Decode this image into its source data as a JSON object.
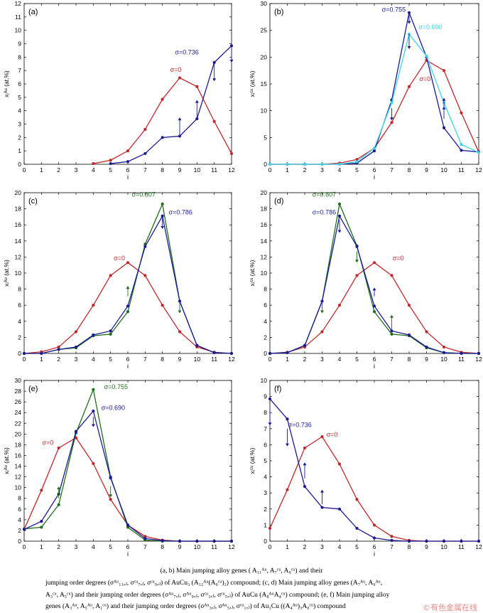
{
  "colors": {
    "red": "#c0282b",
    "navy": "#1a1a96",
    "green": "#1e6e1e",
    "cyan": "#3ed5e6"
  },
  "caption": {
    "line1": "(a, b) Main jumping alloy genes ( A₁₁ᴬᵘ, A₇ᶜᵘ, A₉ᶜᵘ) and their",
    "line2": "jumping order degrees (σᴬᵘ₁₁,ⱼ, σᶜᵘ₇,ⱼ, σᶜᵘ₉,ⱼ) of AuCu₃ (A₁₂ᴬᵘ(A₀ᶜᵘ)₃) compound; (c, d) Main jumping alloy genes (A₇ᴬᵘ, A₉ᴬᵘ,",
    "line3": "A₃ᶜᵘ, A₅ᶜᵘ) and their jumping order degrees (σᴬᵘ₇,ⱼ, σᴬᵘ₉,ⱼ, σᶜᵘ₃,ⱼ, σᶜᵘ₅,ⱼ) of AuCu (A₈ᴬᵘA₄ᶜᵘ) compound; (e, f) Main jumping alloy",
    "line4": "genes (A₃ᴬᵘ, A₅ᴬᵘ, A₁ᶜᵘ) and their jumping order degrees (σᴬᵘ₃,ⱼ, σᴬᵘ₅,ⱼ, σᶜᵘ₁,ⱼ) of Au₃Cu ((A₄ᴬᵘ)₃A₀ᶜᵘ) compound"
  },
  "watermark": "©有色金属在线",
  "chart_data": [
    {
      "type": "line",
      "panel": "(a)",
      "xlabel": "i",
      "ylabel": "xᵢᴬᵘ (at.%)",
      "xlim": [
        0,
        12
      ],
      "ylim": [
        0,
        12
      ],
      "xticks": [
        0,
        1,
        2,
        3,
        4,
        5,
        6,
        7,
        8,
        9,
        10,
        11,
        12
      ],
      "yticks": [
        0,
        1,
        2,
        3,
        4,
        5,
        6,
        7,
        8,
        9,
        10,
        11,
        12
      ],
      "series": [
        {
          "name": "σ=0",
          "color": "red",
          "x": [
            4,
            5,
            6,
            7,
            8,
            9,
            10,
            11,
            12
          ],
          "values": [
            0.05,
            0.3,
            1.0,
            2.6,
            4.85,
            6.45,
            5.8,
            3.2,
            0.8
          ]
        },
        {
          "name": "σ=0.736",
          "color": "navy",
          "x": [
            5,
            6,
            7,
            8,
            9,
            10,
            11,
            12
          ],
          "values": [
            0.05,
            0.2,
            0.8,
            2.0,
            2.1,
            3.4,
            7.6,
            8.85
          ]
        }
      ],
      "arrows": [
        {
          "x": 9,
          "from": 2.1,
          "to": 3.5
        },
        {
          "x": 10,
          "from": 3.4,
          "to": 4.8
        },
        {
          "x": 11,
          "from": 7.6,
          "to": 6.2
        },
        {
          "x": 12,
          "from": 8.85,
          "to": 7.6
        }
      ]
    },
    {
      "type": "line",
      "panel": "(b)",
      "xlabel": "i",
      "ylabel": "xᵢᶜᵘ (at.%)",
      "xlim": [
        0,
        12
      ],
      "ylim": [
        0,
        30
      ],
      "xticks": [
        0,
        1,
        2,
        3,
        4,
        5,
        6,
        7,
        8,
        9,
        10,
        11,
        12
      ],
      "yticks": [
        0,
        5,
        10,
        15,
        20,
        25,
        30
      ],
      "series": [
        {
          "name": "σ=0",
          "color": "red",
          "x": [
            0,
            1,
            2,
            3,
            4,
            5,
            6,
            7,
            8,
            9,
            10,
            11,
            12
          ],
          "values": [
            0,
            0,
            0,
            0,
            0.2,
            0.9,
            3.0,
            7.8,
            14.5,
            19.4,
            17.5,
            9.6,
            2.3
          ]
        },
        {
          "name": "σ=0.755",
          "color": "navy",
          "x": [
            0,
            1,
            2,
            3,
            4,
            5,
            6,
            7,
            8,
            9,
            10,
            11,
            12
          ],
          "values": [
            0,
            0,
            0,
            0,
            0,
            0.2,
            2.5,
            12.0,
            28.3,
            20.0,
            6.8,
            2.6,
            2.3
          ]
        },
        {
          "name": "σ=0.690",
          "color": "cyan",
          "x": [
            0,
            1,
            2,
            3,
            4,
            5,
            6,
            7,
            8,
            9,
            10,
            11,
            12
          ],
          "values": [
            0,
            0,
            0,
            0,
            0,
            0.5,
            3.0,
            11.5,
            24.3,
            20.2,
            11.5,
            3.7,
            2.2
          ]
        }
      ],
      "arrows": [
        {
          "x": 7,
          "from": 10.5,
          "to": 8.2
        },
        {
          "x": 8,
          "from": 28.2,
          "to": 26.2
        },
        {
          "x": 8,
          "from": 24.3,
          "to": 21.5
        },
        {
          "x": 10,
          "from": 8.5,
          "to": 10.8
        },
        {
          "x": 10,
          "from": 10.6,
          "to": 12.4
        }
      ]
    },
    {
      "type": "line",
      "panel": "(c)",
      "xlabel": "i",
      "ylabel": "xᵢᴬᵘ (at.%)",
      "xlim": [
        0,
        12
      ],
      "ylim": [
        0,
        20
      ],
      "xticks": [
        0,
        1,
        2,
        3,
        4,
        5,
        6,
        7,
        8,
        9,
        10,
        11,
        12
      ],
      "yticks": [
        0,
        2,
        4,
        6,
        8,
        10,
        12,
        14,
        16,
        18,
        20
      ],
      "series": [
        {
          "name": "σ=0",
          "color": "red",
          "x": [
            0,
            1,
            2,
            3,
            4,
            5,
            6,
            7,
            8,
            9,
            10,
            11,
            12
          ],
          "values": [
            0,
            0.2,
            0.8,
            2.7,
            6.0,
            9.7,
            11.3,
            9.7,
            6.0,
            2.7,
            0.8,
            0.15,
            0
          ]
        },
        {
          "name": "σ=0.807",
          "color": "green",
          "x": [
            0,
            1,
            2,
            3,
            4,
            5,
            6,
            7,
            8,
            9,
            10,
            11,
            12
          ],
          "values": [
            0,
            0,
            0.5,
            0.7,
            2.2,
            2.4,
            5.2,
            13.6,
            18.6,
            6.5,
            1.0,
            0.1,
            0
          ]
        },
        {
          "name": "σ=0.786",
          "color": "navy",
          "x": [
            0,
            1,
            2,
            3,
            4,
            5,
            6,
            7,
            8,
            9,
            10,
            11,
            12
          ],
          "values": [
            0,
            0,
            0.5,
            0.8,
            2.3,
            2.8,
            5.9,
            13.3,
            17.1,
            6.5,
            1.0,
            0.1,
            0
          ]
        }
      ],
      "arrows": [
        {
          "x": 6,
          "from": 7.1,
          "to": 8.4
        },
        {
          "x": 8,
          "from": 17.1,
          "to": 15.5
        },
        {
          "x": 9,
          "from": 6.4,
          "to": 5.0
        }
      ]
    },
    {
      "type": "line",
      "panel": "(d)",
      "xlabel": "i",
      "ylabel": "xᵢᶜᵘ (at.%)",
      "xlim": [
        0,
        12
      ],
      "ylim": [
        0,
        20
      ],
      "xticks": [
        0,
        1,
        2,
        3,
        4,
        5,
        6,
        7,
        8,
        9,
        10,
        11,
        12
      ],
      "yticks": [
        0,
        2,
        4,
        6,
        8,
        10,
        12,
        14,
        16,
        18,
        20
      ],
      "series": [
        {
          "name": "σ=0",
          "color": "red",
          "x": [
            0,
            1,
            2,
            3,
            4,
            5,
            6,
            7,
            8,
            9,
            10,
            11,
            12
          ],
          "values": [
            0,
            0.15,
            0.8,
            2.7,
            6.0,
            9.7,
            11.3,
            9.7,
            6.0,
            2.7,
            0.8,
            0.15,
            0
          ]
        },
        {
          "name": "σ=0.807",
          "color": "green",
          "x": [
            0,
            1,
            2,
            3,
            4,
            5,
            6,
            7,
            8,
            9,
            10,
            11,
            12
          ],
          "values": [
            0,
            0.1,
            1.0,
            6.5,
            18.6,
            13.4,
            5.2,
            2.4,
            2.2,
            0.7,
            0.1,
            0,
            0
          ]
        },
        {
          "name": "σ=0.786",
          "color": "navy",
          "x": [
            0,
            1,
            2,
            3,
            4,
            5,
            6,
            7,
            8,
            9,
            10,
            11,
            12
          ],
          "values": [
            0,
            0.1,
            1.0,
            6.5,
            17.1,
            13.3,
            5.9,
            2.8,
            2.3,
            0.8,
            0.1,
            0,
            0
          ]
        }
      ],
      "arrows": [
        {
          "x": 3,
          "from": 6.5,
          "to": 5.0
        },
        {
          "x": 4,
          "from": 16.6,
          "to": 15.0
        },
        {
          "x": 5,
          "from": 12.7,
          "to": 11.3
        },
        {
          "x": 6,
          "from": 7.1,
          "to": 8.2
        },
        {
          "x": 7,
          "from": 3.0,
          "to": 4.8
        }
      ]
    },
    {
      "type": "line",
      "panel": "(e)",
      "xlabel": "i",
      "ylabel": "xᵢᴬᵘ (at.%)",
      "xlim": [
        0,
        12
      ],
      "ylim": [
        0,
        30
      ],
      "xticks": [
        0,
        1,
        2,
        3,
        4,
        5,
        6,
        7,
        8,
        9,
        10,
        11,
        12
      ],
      "yticks": [
        0,
        2,
        4,
        6,
        8,
        10,
        12,
        14,
        16,
        18,
        20,
        22,
        24,
        26,
        28,
        30
      ],
      "series": [
        {
          "name": "σ=0",
          "color": "red",
          "x": [
            0,
            1,
            2,
            3,
            4,
            5,
            6,
            7,
            8,
            9,
            10,
            11,
            12
          ],
          "values": [
            2.2,
            9.5,
            17.4,
            19.3,
            14.5,
            7.8,
            3.0,
            0.9,
            0.2,
            0,
            0,
            0,
            0
          ]
        },
        {
          "name": "σ=0.755",
          "color": "green",
          "x": [
            0,
            1,
            2,
            3,
            4,
            5,
            6,
            7,
            8,
            9,
            10,
            11,
            12
          ],
          "values": [
            2.3,
            2.6,
            6.8,
            20.2,
            28.3,
            12.0,
            2.6,
            0.2,
            0,
            0,
            0,
            0,
            0
          ]
        },
        {
          "name": "σ=0.690",
          "color": "navy",
          "x": [
            0,
            1,
            2,
            3,
            4,
            5,
            6,
            7,
            8,
            9,
            10,
            11,
            12
          ],
          "values": [
            2.2,
            3.7,
            8.8,
            20.5,
            24.3,
            11.8,
            3.0,
            0.5,
            0.1,
            0,
            0,
            0,
            0
          ]
        }
      ],
      "arrows": [
        {
          "x": 2,
          "from": 8.0,
          "to": 10.2
        },
        {
          "x": 4,
          "from": 23.2,
          "to": 21.3
        },
        {
          "x": 5,
          "from": 10.3,
          "to": 8.2
        }
      ]
    },
    {
      "type": "line",
      "panel": "(f)",
      "xlabel": "i",
      "ylabel": "xᵢᶜᵘ (at.%)",
      "xlim": [
        0,
        12
      ],
      "ylim": [
        0,
        10
      ],
      "xticks": [
        0,
        1,
        2,
        3,
        4,
        5,
        6,
        7,
        8,
        9,
        10,
        11,
        12
      ],
      "yticks": [
        0,
        1,
        2,
        3,
        4,
        5,
        6,
        7,
        8,
        9,
        10
      ],
      "series": [
        {
          "name": "σ=0",
          "color": "red",
          "x": [
            0,
            1,
            2,
            3,
            4,
            5,
            6,
            7,
            8,
            9,
            10,
            11,
            12
          ],
          "values": [
            0.8,
            3.2,
            5.8,
            6.5,
            4.8,
            2.6,
            1.0,
            0.3,
            0.05,
            0,
            0,
            0,
            0
          ]
        },
        {
          "name": "σ=0.736",
          "color": "navy",
          "x": [
            0,
            1,
            2,
            3,
            4,
            5,
            6,
            7,
            8,
            9,
            10,
            11,
            12
          ],
          "values": [
            8.85,
            7.6,
            3.4,
            2.1,
            2.0,
            0.8,
            0.2,
            0.05,
            0,
            0,
            0,
            0,
            0
          ]
        }
      ],
      "arrows": [
        {
          "x": 0,
          "from": 8.3,
          "to": 7.2
        },
        {
          "x": 1,
          "from": 7.0,
          "to": 5.9
        },
        {
          "x": 2,
          "from": 3.9,
          "to": 4.9
        },
        {
          "x": 3,
          "from": 2.3,
          "to": 3.2
        }
      ]
    }
  ]
}
